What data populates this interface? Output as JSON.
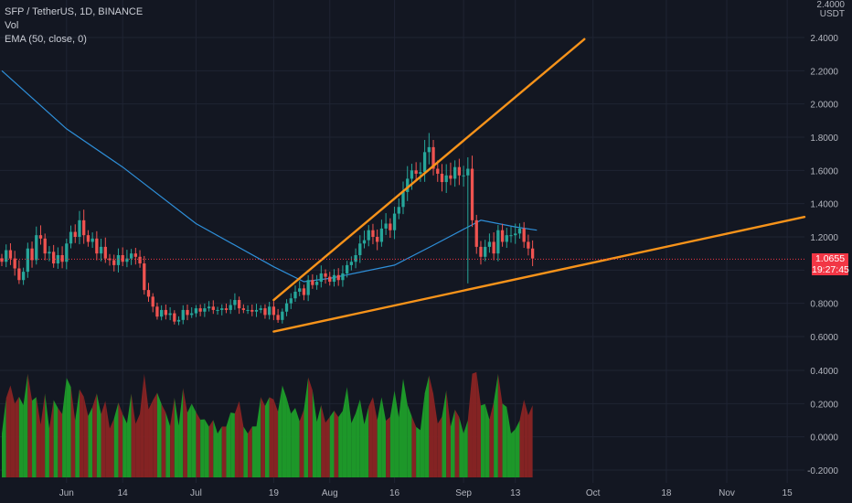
{
  "legend": {
    "symbol": "SFP / TetherUS, 1D, BINANCE",
    "volume": "Vol",
    "ema": "EMA (50, close, 0)"
  },
  "price_axis": {
    "unit_top": "2.4000",
    "unit_bottom": "USDT",
    "last_price": "1.0655",
    "countdown": "19:27:45"
  },
  "colors": {
    "background": "#131722",
    "up": "#26a69a",
    "down": "#ef5350",
    "ema": "#2e8fd9",
    "trendline": "#f7931a",
    "last_price": "#f23645",
    "volume_up": "#1e9e2a",
    "volume_down": "#8a2424"
  },
  "chart_data": {
    "type": "candlestick",
    "symbol": "SFP / TetherUS",
    "interval": "1D",
    "exchange": "BINANCE",
    "price_ylim": [
      0.55,
      2.6
    ],
    "osc_ylim": [
      -0.25,
      0.45
    ],
    "y_ticks": [
      2.4,
      2.2,
      2.0,
      1.8,
      1.6,
      1.4,
      1.2,
      0.8,
      0.6
    ],
    "y_tick_labels": [
      "2.4000",
      "2.2000",
      "2.0000",
      "1.8000",
      "1.6000",
      "1.4000",
      "1.2000",
      "0.8000",
      "0.6000"
    ],
    "osc_ticks": [
      0.4,
      0.2,
      0.0,
      -0.2
    ],
    "osc_tick_labels": [
      "0.4000",
      "0.2000",
      "0.0000",
      "-0.2000"
    ],
    "x_date_start": "2021-05-17",
    "x_date_end": "2021-11-19",
    "x_ticks": [
      {
        "date": "2021-06-01",
        "label": "Jun"
      },
      {
        "date": "2021-06-14",
        "label": "14"
      },
      {
        "date": "2021-07-01",
        "label": "Jul"
      },
      {
        "date": "2021-07-19",
        "label": "19"
      },
      {
        "date": "2021-08-01",
        "label": "Aug"
      },
      {
        "date": "2021-08-16",
        "label": "16"
      },
      {
        "date": "2021-09-01",
        "label": "Sep"
      },
      {
        "date": "2021-09-13",
        "label": "13"
      },
      {
        "date": "2021-10-01",
        "label": "Oct"
      },
      {
        "date": "2021-10-18",
        "label": "18"
      },
      {
        "date": "2021-11-01",
        "label": "Nov"
      },
      {
        "date": "2021-11-15",
        "label": "15"
      }
    ],
    "closes": [
      1.05,
      1.12,
      1.07,
      1.01,
      0.94,
      0.99,
      1.13,
      1.06,
      1.21,
      1.19,
      1.1,
      1.11,
      1.04,
      1.09,
      1.05,
      1.16,
      1.23,
      1.2,
      1.3,
      1.21,
      1.17,
      1.19,
      1.1,
      1.14,
      1.07,
      1.06,
      1.03,
      1.09,
      1.05,
      1.07,
      1.1,
      1.08,
      1.04,
      0.88,
      0.84,
      0.78,
      0.72,
      0.76,
      0.73,
      0.74,
      0.69,
      0.7,
      0.76,
      0.73,
      0.74,
      0.77,
      0.75,
      0.77,
      0.78,
      0.76,
      0.76,
      0.77,
      0.76,
      0.79,
      0.82,
      0.77,
      0.76,
      0.76,
      0.75,
      0.76,
      0.77,
      0.73,
      0.78,
      0.73,
      0.7,
      0.75,
      0.8,
      0.83,
      0.87,
      0.89,
      0.85,
      0.94,
      0.91,
      0.93,
      0.98,
      0.96,
      0.93,
      0.97,
      0.94,
      0.98,
      1.03,
      1.05,
      1.09,
      1.16,
      1.18,
      1.24,
      1.2,
      1.17,
      1.25,
      1.28,
      1.24,
      1.34,
      1.38,
      1.47,
      1.55,
      1.6,
      1.58,
      1.59,
      1.71,
      1.74,
      1.61,
      1.58,
      1.53,
      1.57,
      1.55,
      1.62,
      1.57,
      1.57,
      1.61,
      1.3,
      1.14,
      1.08,
      1.14,
      1.17,
      1.1,
      1.24,
      1.17,
      1.21,
      1.21,
      1.22,
      1.25,
      1.17,
      1.13,
      1.07
    ],
    "ema50": [
      {
        "date": "2021-05-17",
        "value": 2.2
      },
      {
        "date": "2021-06-01",
        "value": 1.85
      },
      {
        "date": "2021-06-14",
        "value": 1.62
      },
      {
        "date": "2021-07-01",
        "value": 1.28
      },
      {
        "date": "2021-07-19",
        "value": 1.02
      },
      {
        "date": "2021-07-26",
        "value": 0.93
      },
      {
        "date": "2021-08-01",
        "value": 0.95
      },
      {
        "date": "2021-08-16",
        "value": 1.03
      },
      {
        "date": "2021-08-25",
        "value": 1.15
      },
      {
        "date": "2021-09-05",
        "value": 1.3
      },
      {
        "date": "2021-09-13",
        "value": 1.26
      },
      {
        "date": "2021-09-18",
        "value": 1.24
      }
    ],
    "trendlines": [
      {
        "from": {
          "date": "2021-07-19",
          "price": 0.82
        },
        "to": {
          "date": "2021-09-29",
          "price": 2.39
        }
      },
      {
        "from": {
          "date": "2021-07-19",
          "price": 0.63
        },
        "to": {
          "date": "2021-11-19",
          "price": 1.32
        }
      }
    ],
    "last_price": 1.0655,
    "last_price_label": "1.0655",
    "countdown": "19:27:45",
    "legend": [
      "Vol",
      "EMA (50, close, 0)"
    ]
  }
}
